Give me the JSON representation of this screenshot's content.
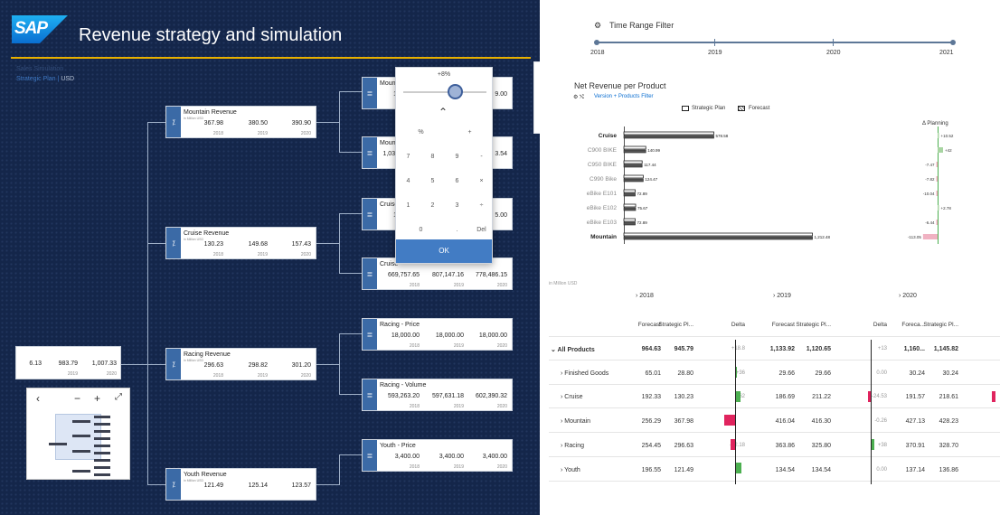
{
  "header": {
    "title": "Revenue strategy and simulation",
    "logo": "SAP",
    "subtitle": "Sales Simulation",
    "version": "Strategic Plan",
    "currency": "USD"
  },
  "nodes": {
    "mountain": {
      "title": "Mountain Revenue",
      "unit": "in Million USD",
      "values": [
        "367.98",
        "380.50",
        "390.90"
      ]
    },
    "cruise": {
      "title": "Cruise Revenue",
      "unit": "in Million USD",
      "values": [
        "130.23",
        "149.68",
        "157.43"
      ]
    },
    "racing": {
      "title": "Racing Revenue",
      "unit": "in Million USD",
      "values": [
        "296.63",
        "298.82",
        "301.20"
      ]
    },
    "youth": {
      "title": "Youth Revenue",
      "unit": "in Million USD",
      "values": [
        "121.49",
        "125.14",
        "123.57"
      ]
    },
    "total": {
      "values": [
        "6.13",
        "983.79",
        "1,007.33"
      ]
    },
    "m_price": {
      "title": "Mountain",
      "values": [
        "1:",
        "",
        "9.00"
      ]
    },
    "m_vol": {
      "title": "Mount",
      "values": [
        "1,034",
        "",
        "3.54"
      ]
    },
    "c_price": {
      "title": "Cruise",
      "values": [
        "1:",
        "",
        "5.00"
      ]
    },
    "c_vol": {
      "title": "Cruise",
      "values": [
        "669,757.65",
        "807,147.16",
        "778,486.15"
      ]
    },
    "r_price": {
      "title": "Racing - Price",
      "values": [
        "18,000.00",
        "18,000.00",
        "18,000.00"
      ]
    },
    "r_vol": {
      "title": "Racing - Volume",
      "values": [
        "593,263.20",
        "597,631.18",
        "602,390.32"
      ]
    },
    "y_price": {
      "title": "Youth - Price",
      "values": [
        "3,400.00",
        "3,400.00",
        "3,400.00"
      ]
    }
  },
  "years": [
    "2018",
    "2019",
    "2020"
  ],
  "keypad": {
    "value": "+8%",
    "keys": [
      "%",
      "",
      "+",
      "7",
      "8",
      "9",
      "-",
      "4",
      "5",
      "6",
      "×",
      "1",
      "2",
      "3",
      "÷",
      "0",
      "",
      ".",
      "Del"
    ],
    "ok": "OK"
  },
  "time_filter": {
    "title": "Time Range Filter",
    "years": [
      "2018",
      "2019",
      "2020",
      "2021"
    ]
  },
  "chart_data": {
    "type": "bar",
    "title": "Net Revenue per Product",
    "filter": "Version + Products Filter",
    "legend": [
      "Strategic Plan",
      "Forecast"
    ],
    "delta_label": "Δ Planning",
    "categories": [
      "Cruise",
      "C900 BIKE",
      "C950 BIKE",
      "C990 Bike",
      "eBike E101",
      "eBike E102",
      "eBike E103",
      "Mountain"
    ],
    "series": [
      {
        "name": "Forecast",
        "values": [
          578.58,
          140.99,
          117.44,
          124.47,
          72.89,
          75.67,
          72.89,
          1212.48
        ]
      }
    ],
    "delta": [
      "+10.52",
      "+42",
      "-7.47",
      "-7.82",
      "-10.04",
      "+2.78",
      "-6.44",
      "-113.05"
    ]
  },
  "table": {
    "unit": "in Million USD",
    "year_headers": [
      "2018",
      "2019",
      "2020"
    ],
    "col_headers": [
      "Forecast",
      "Strategic Pl...",
      "Delta",
      "Forecast",
      "Strategic Pl...",
      "Delta",
      "Foreca...",
      "Strategic Pl...",
      "Del"
    ],
    "rows": [
      {
        "label": "All Products",
        "v": [
          "964.63",
          "945.79",
          "+18.8",
          "1,133.92",
          "1,120.65",
          "+13",
          "1,160...",
          "1,145.82",
          ""
        ]
      },
      {
        "label": "Finished Goods",
        "v": [
          "65.01",
          "28.80",
          "+36",
          "29.66",
          "29.66",
          "0.00",
          "30.24",
          "30.24",
          ""
        ]
      },
      {
        "label": "Cruise",
        "v": [
          "192.33",
          "130.23",
          "+62",
          "186.69",
          "211.22",
          "-24.53",
          "191.57",
          "218.61",
          "-27"
        ]
      },
      {
        "label": "Mountain",
        "v": [
          "256.29",
          "367.98",
          "",
          "416.04",
          "416.30",
          "-0.26",
          "427.13",
          "428.23",
          "-1.10"
        ]
      },
      {
        "label": "Racing",
        "v": [
          "254.45",
          "296.63",
          "-42.18",
          "363.86",
          "325.80",
          "+38",
          "370.91",
          "328.70",
          ""
        ]
      },
      {
        "label": "Youth",
        "v": [
          "196.55",
          "121.49",
          "",
          "134.54",
          "134.54",
          "0.00",
          "137.14",
          "136.86",
          ""
        ]
      }
    ]
  }
}
